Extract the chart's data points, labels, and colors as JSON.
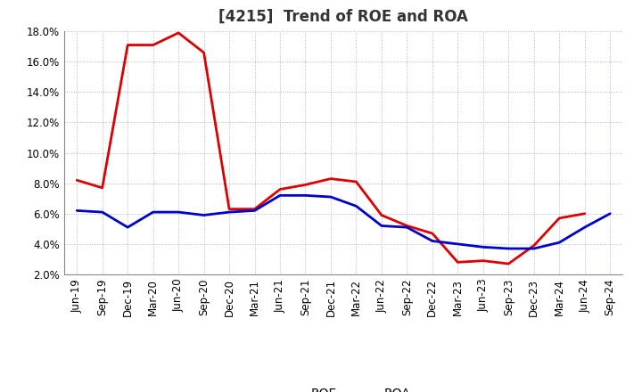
{
  "title": "[4215]  Trend of ROE and ROA",
  "labels": [
    "Jun-19",
    "Sep-19",
    "Dec-19",
    "Mar-20",
    "Jun-20",
    "Sep-20",
    "Dec-20",
    "Mar-21",
    "Jun-21",
    "Sep-21",
    "Dec-21",
    "Mar-22",
    "Jun-22",
    "Sep-22",
    "Dec-22",
    "Mar-23",
    "Jun-23",
    "Sep-23",
    "Dec-23",
    "Mar-24",
    "Jun-24",
    "Sep-24"
  ],
  "ROE": [
    8.2,
    7.7,
    17.1,
    17.1,
    17.9,
    16.6,
    6.3,
    6.3,
    7.6,
    7.9,
    8.3,
    8.1,
    5.9,
    5.2,
    4.7,
    2.8,
    2.9,
    2.7,
    3.9,
    5.7,
    6.0,
    null
  ],
  "ROA": [
    6.2,
    6.1,
    5.1,
    6.1,
    6.1,
    5.9,
    6.1,
    6.2,
    7.2,
    7.2,
    7.1,
    6.5,
    5.2,
    5.1,
    4.2,
    4.0,
    3.8,
    3.7,
    3.7,
    4.1,
    5.1,
    6.0
  ],
  "roe_color": "#dd0000",
  "roa_color": "#0000cc",
  "background_color": "#ffffff",
  "grid_color": "#b0b0c8",
  "ylim": [
    2.0,
    18.0
  ],
  "yticks": [
    2.0,
    4.0,
    6.0,
    8.0,
    10.0,
    12.0,
    14.0,
    16.0,
    18.0
  ],
  "title_fontsize": 12,
  "axis_fontsize": 8.5,
  "legend_fontsize": 10,
  "line_width": 2.0
}
